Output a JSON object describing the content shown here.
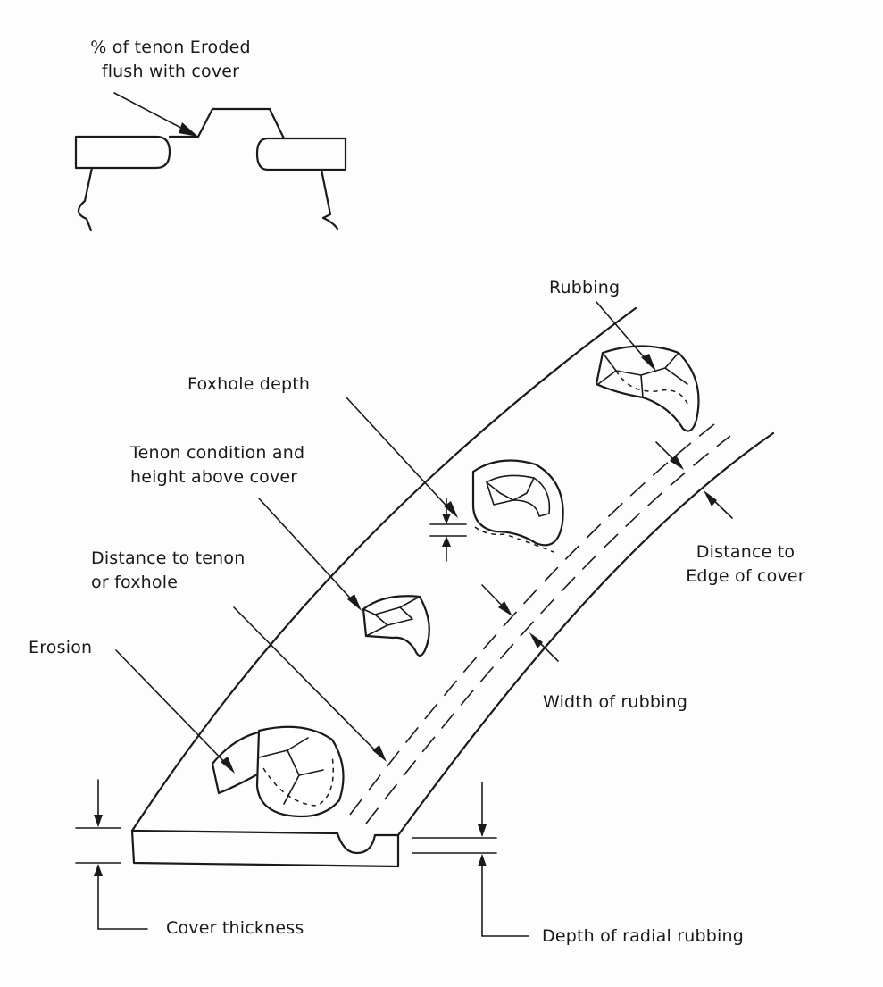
{
  "labels": {
    "eroded_line1": "% of tenon Eroded",
    "eroded_line2": "flush with cover",
    "rubbing": "Rubbing",
    "foxhole_depth": "Foxhole depth",
    "tenon_condition_line1": "Tenon condition and",
    "tenon_condition_line2": "height above cover",
    "distance_tenon_line1": "Distance to tenon",
    "distance_tenon_line2": "or foxhole",
    "erosion": "Erosion",
    "distance_edge_line1": "Distance to",
    "distance_edge_line2": "Edge of cover",
    "width_rubbing": "Width of rubbing",
    "cover_thickness": "Cover thickness",
    "depth_radial_rubbing": "Depth of radial rubbing"
  }
}
